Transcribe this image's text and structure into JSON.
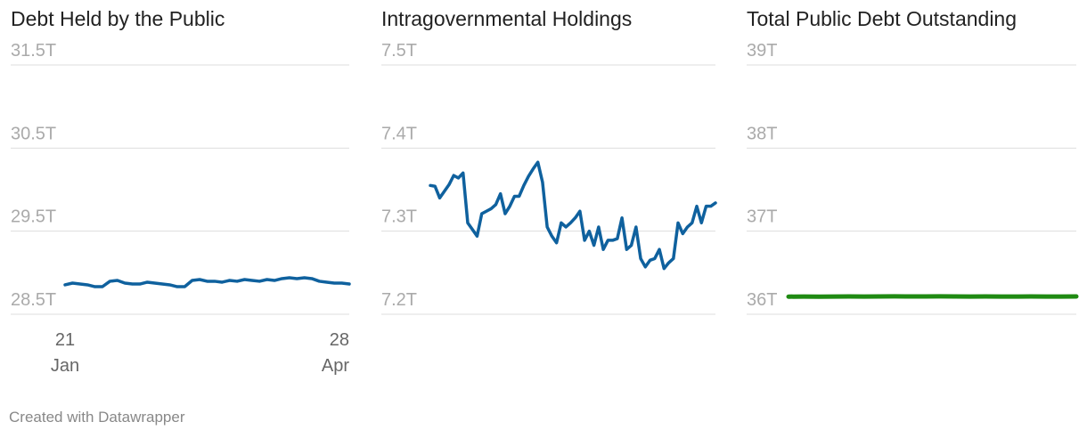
{
  "chart_data": [
    {
      "type": "line",
      "title": "Debt Held by the Public",
      "color": "#0f619e",
      "ylim": [
        28.5,
        31.5
      ],
      "yticks": [
        {
          "value": 31.5,
          "label": "31.5T"
        },
        {
          "value": 30.5,
          "label": "30.5T"
        },
        {
          "value": 29.5,
          "label": "29.5T"
        },
        {
          "value": 28.5,
          "label": "28.5T"
        }
      ],
      "x_labels": [
        [
          "21",
          "Jan"
        ],
        [
          "28",
          "Apr"
        ]
      ],
      "values": [
        28.854,
        28.875,
        28.864,
        28.854,
        28.832,
        28.832,
        28.897,
        28.907,
        28.875,
        28.864,
        28.864,
        28.886,
        28.875,
        28.864,
        28.854,
        28.832,
        28.832,
        28.907,
        28.918,
        28.897,
        28.897,
        28.886,
        28.907,
        28.897,
        28.918,
        28.907,
        28.897,
        28.918,
        28.907,
        28.929,
        28.939,
        28.929,
        28.939,
        28.929,
        28.897,
        28.886,
        28.875,
        28.875,
        28.864
      ]
    },
    {
      "type": "line",
      "title": "Intragovernmental Holdings",
      "color": "#0f619e",
      "ylim": [
        7.2,
        7.5
      ],
      "yticks": [
        {
          "value": 7.5,
          "label": "7.5T"
        },
        {
          "value": 7.4,
          "label": "7.4T"
        },
        {
          "value": 7.3,
          "label": "7.3T"
        },
        {
          "value": 7.2,
          "label": "7.2T"
        }
      ],
      "values": [
        7.355,
        7.354,
        7.34,
        7.348,
        7.356,
        7.367,
        7.364,
        7.37,
        7.31,
        7.302,
        7.294,
        7.321,
        7.324,
        7.327,
        7.332,
        7.345,
        7.321,
        7.33,
        7.342,
        7.342,
        7.355,
        7.366,
        7.375,
        7.383,
        7.359,
        7.305,
        7.294,
        7.286,
        7.31,
        7.305,
        7.31,
        7.316,
        7.324,
        7.289,
        7.3,
        7.283,
        7.305,
        7.278,
        7.289,
        7.289,
        7.291,
        7.316,
        7.278,
        7.283,
        7.305,
        7.267,
        7.257,
        7.265,
        7.267,
        7.278,
        7.255,
        7.262,
        7.267,
        7.31,
        7.297,
        7.305,
        7.31,
        7.33,
        7.31,
        7.33,
        7.33,
        7.334
      ]
    },
    {
      "type": "line",
      "title": "Total Public Debt Outstanding",
      "color": "#1f8a12",
      "ylim": [
        36,
        39
      ],
      "yticks": [
        {
          "value": 39,
          "label": "39T"
        },
        {
          "value": 38,
          "label": "38T"
        },
        {
          "value": 37,
          "label": "37T"
        },
        {
          "value": 36,
          "label": "36T"
        }
      ],
      "values": [
        36.212,
        36.213,
        36.212,
        36.213,
        36.214,
        36.213,
        36.214,
        36.215,
        36.214,
        36.214,
        36.215,
        36.214,
        36.213,
        36.214,
        36.213,
        36.213,
        36.214,
        36.213,
        36.213,
        36.214
      ]
    }
  ],
  "footer": "Created with Datawrapper"
}
